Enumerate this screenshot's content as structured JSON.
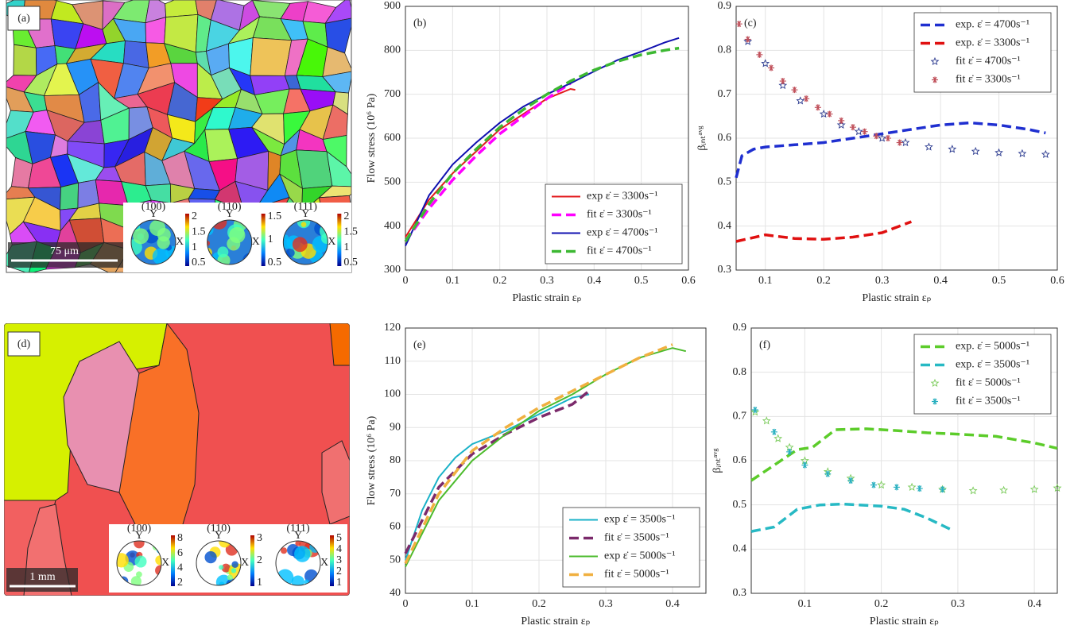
{
  "chart_data": [
    {
      "type": "line",
      "panel_label": "(b)",
      "xlabel": "Plastic strain εₚ",
      "ylabel": "Flow stress (10⁶ Pa)",
      "xlim": [
        0,
        0.6
      ],
      "xticks": [
        0,
        0.1,
        0.2,
        0.3,
        0.4,
        0.5,
        0.6
      ],
      "ylim": [
        300,
        900
      ],
      "yticks": [
        300,
        400,
        500,
        600,
        700,
        800,
        900
      ],
      "grid": true,
      "legend": "lower right",
      "series": [
        {
          "name": "exp ε̇ = 3300s⁻¹",
          "color": "#e31a1c",
          "style": "solid",
          "x": [
            0,
            0.05,
            0.1,
            0.15,
            0.2,
            0.25,
            0.3,
            0.35,
            0.36
          ],
          "values": [
            375,
            460,
            520,
            570,
            620,
            655,
            690,
            712,
            710
          ]
        },
        {
          "name": "fit ε̇ = 3300s⁻¹",
          "color": "#ff00ff",
          "style": "dashed",
          "x": [
            0,
            0.05,
            0.1,
            0.15,
            0.2,
            0.25,
            0.3,
            0.35
          ],
          "values": [
            365,
            440,
            505,
            560,
            610,
            650,
            690,
            725
          ]
        },
        {
          "name": "exp ε̇ = 4700s⁻¹",
          "color": "#1010b0",
          "style": "solid",
          "x": [
            0,
            0.05,
            0.1,
            0.15,
            0.2,
            0.25,
            0.3,
            0.35,
            0.4,
            0.45,
            0.5,
            0.55,
            0.58
          ],
          "values": [
            355,
            470,
            540,
            590,
            635,
            672,
            700,
            725,
            752,
            778,
            797,
            818,
            828
          ]
        },
        {
          "name": "fit ε̇ = 4700s⁻¹",
          "color": "#3cb832",
          "style": "dashed",
          "x": [
            0,
            0.05,
            0.1,
            0.15,
            0.2,
            0.25,
            0.3,
            0.35,
            0.4,
            0.45,
            0.5,
            0.55,
            0.58
          ],
          "values": [
            365,
            450,
            520,
            575,
            625,
            665,
            700,
            730,
            755,
            775,
            790,
            800,
            805
          ]
        }
      ]
    },
    {
      "type": "line",
      "panel_label": "(c)",
      "xlabel": "Plastic strain εₚ",
      "ylabel": "βᵢₙₜᵃᵛᵍ",
      "xlim": [
        0.05,
        0.6
      ],
      "xticks": [
        0.1,
        0.2,
        0.3,
        0.4,
        0.5,
        0.6
      ],
      "ylim": [
        0.3,
        0.9
      ],
      "yticks": [
        0.3,
        0.4,
        0.5,
        0.6,
        0.7,
        0.8,
        0.9
      ],
      "grid": true,
      "legend": "upper right",
      "series": [
        {
          "name": "exp. ε̇ = 4700s⁻¹",
          "color": "#1f2fd0",
          "style": "dashed",
          "x": [
            0.05,
            0.06,
            0.08,
            0.1,
            0.15,
            0.2,
            0.25,
            0.3,
            0.35,
            0.4,
            0.45,
            0.5,
            0.55,
            0.58
          ],
          "values": [
            0.51,
            0.56,
            0.575,
            0.58,
            0.585,
            0.59,
            0.6,
            0.61,
            0.62,
            0.63,
            0.635,
            0.63,
            0.62,
            0.612
          ]
        },
        {
          "name": "exp. ε̇ = 3300s⁻¹",
          "color": "#e01010",
          "style": "dashed",
          "x": [
            0.05,
            0.1,
            0.15,
            0.2,
            0.25,
            0.3,
            0.35
          ],
          "values": [
            0.365,
            0.38,
            0.372,
            0.37,
            0.375,
            0.385,
            0.41
          ]
        },
        {
          "name": "fit ε̇ = 4700s⁻¹",
          "color": "#2b3a8f",
          "style": "star",
          "x": [
            0.07,
            0.1,
            0.13,
            0.16,
            0.2,
            0.23,
            0.26,
            0.3,
            0.34,
            0.38,
            0.42,
            0.46,
            0.5,
            0.54,
            0.58
          ],
          "values": [
            0.82,
            0.77,
            0.72,
            0.685,
            0.655,
            0.63,
            0.615,
            0.6,
            0.59,
            0.58,
            0.575,
            0.57,
            0.567,
            0.565,
            0.563
          ]
        },
        {
          "name": "fit ε̇ = 3300s⁻¹",
          "color": "#c0505a",
          "style": "asterisk",
          "x": [
            0.055,
            0.07,
            0.09,
            0.11,
            0.13,
            0.15,
            0.17,
            0.19,
            0.21,
            0.23,
            0.25,
            0.27,
            0.29,
            0.31,
            0.33
          ],
          "values": [
            0.86,
            0.825,
            0.79,
            0.76,
            0.73,
            0.71,
            0.69,
            0.67,
            0.655,
            0.64,
            0.625,
            0.615,
            0.605,
            0.6,
            0.59
          ]
        }
      ]
    },
    {
      "type": "line",
      "panel_label": "(e)",
      "xlabel": "Plastic strain εₚ",
      "ylabel": "Flow stress (10⁶ Pa)",
      "xlim": [
        0,
        0.45
      ],
      "xticks": [
        0,
        0.1,
        0.2,
        0.3,
        0.4
      ],
      "ylim": [
        40,
        120
      ],
      "yticks": [
        40,
        50,
        60,
        70,
        80,
        90,
        100,
        110,
        120
      ],
      "grid": true,
      "legend": "lower right",
      "series": [
        {
          "name": "exp ε̇ = 3500s⁻¹",
          "color": "#1ab2c8",
          "style": "solid",
          "x": [
            0,
            0.025,
            0.05,
            0.075,
            0.1,
            0.15,
            0.2,
            0.25,
            0.275
          ],
          "values": [
            50,
            65,
            75,
            81,
            85,
            89,
            94,
            99,
            100
          ]
        },
        {
          "name": "fit ε̇ = 3500s⁻¹",
          "color": "#7b2a6b",
          "style": "dashed",
          "x": [
            0,
            0.05,
            0.1,
            0.15,
            0.2,
            0.25,
            0.275
          ],
          "values": [
            52,
            72,
            82,
            88,
            93,
            97,
            101
          ]
        },
        {
          "name": "exp ε̇ = 5000s⁻¹",
          "color": "#4cbb2c",
          "style": "solid",
          "x": [
            0,
            0.05,
            0.1,
            0.15,
            0.2,
            0.25,
            0.3,
            0.35,
            0.4,
            0.42
          ],
          "values": [
            48,
            68,
            80,
            88,
            95,
            100,
            106,
            111,
            114,
            113
          ]
        },
        {
          "name": "fit ε̇ = 5000s⁻¹",
          "color": "#f0b040",
          "style": "dashed",
          "x": [
            0,
            0.05,
            0.1,
            0.15,
            0.2,
            0.25,
            0.3,
            0.35,
            0.4
          ],
          "values": [
            49,
            70,
            83,
            90,
            96,
            101,
            106,
            111,
            115
          ]
        }
      ]
    },
    {
      "type": "line",
      "panel_label": "(f)",
      "xlabel": "Plastic strain εₚ",
      "ylabel": "βᵢₙₜᵃᵛᵍ",
      "xlim": [
        0.03,
        0.43
      ],
      "xticks": [
        0.1,
        0.2,
        0.3,
        0.4
      ],
      "ylim": [
        0.3,
        0.9
      ],
      "yticks": [
        0.3,
        0.4,
        0.5,
        0.6,
        0.7,
        0.8,
        0.9
      ],
      "grid": true,
      "legend": "upper right",
      "series": [
        {
          "name": "exp. ε̇ = 5000s⁻¹",
          "color": "#5ccc2a",
          "style": "dashed",
          "x": [
            0.03,
            0.06,
            0.09,
            0.11,
            0.14,
            0.18,
            0.22,
            0.26,
            0.3,
            0.35,
            0.4,
            0.43
          ],
          "values": [
            0.555,
            0.59,
            0.625,
            0.63,
            0.67,
            0.672,
            0.668,
            0.663,
            0.66,
            0.655,
            0.64,
            0.628
          ]
        },
        {
          "name": "exp. ε̇ = 3500s⁻¹",
          "color": "#27b9c4",
          "style": "dashed",
          "x": [
            0.03,
            0.06,
            0.09,
            0.12,
            0.15,
            0.2,
            0.23,
            0.26,
            0.29
          ],
          "values": [
            0.44,
            0.45,
            0.49,
            0.5,
            0.502,
            0.497,
            0.49,
            0.47,
            0.445
          ]
        },
        {
          "name": "fit ε̇ = 5000s⁻¹",
          "color": "#7acb5a",
          "style": "star",
          "x": [
            0.035,
            0.05,
            0.065,
            0.08,
            0.1,
            0.13,
            0.16,
            0.2,
            0.24,
            0.28,
            0.32,
            0.36,
            0.4,
            0.43
          ],
          "values": [
            0.71,
            0.69,
            0.65,
            0.63,
            0.6,
            0.575,
            0.56,
            0.545,
            0.54,
            0.535,
            0.532,
            0.533,
            0.535,
            0.538
          ]
        },
        {
          "name": "fit ε̇ = 3500s⁻¹",
          "color": "#2ab0c0",
          "style": "asterisk",
          "x": [
            0.035,
            0.06,
            0.08,
            0.1,
            0.13,
            0.16,
            0.19,
            0.22,
            0.25,
            0.28
          ],
          "values": [
            0.715,
            0.665,
            0.62,
            0.59,
            0.57,
            0.555,
            0.545,
            0.54,
            0.537,
            0.535
          ]
        }
      ]
    }
  ],
  "micrographs": [
    {
      "panel_label": "(a)",
      "scale_bar": "75 μm",
      "pole_figures": [
        {
          "title": "(100)",
          "axes": [
            "Y",
            "X"
          ],
          "colorbar_ticks": [
            2,
            1.5,
            1,
            0.5
          ]
        },
        {
          "title": "(110)",
          "axes": [
            "Y",
            "X"
          ],
          "colorbar_ticks": [
            1.5,
            1,
            0.5
          ]
        },
        {
          "title": "(111)",
          "axes": [
            "Y",
            "X"
          ],
          "colorbar_ticks": [
            2,
            1.5,
            1,
            0.5
          ]
        }
      ]
    },
    {
      "panel_label": "(d)",
      "scale_bar": "1 mm",
      "pole_figures": [
        {
          "title": "(100)",
          "axes": [
            "Y",
            "X"
          ],
          "colorbar_ticks": [
            8,
            6,
            4,
            2
          ]
        },
        {
          "title": "(110)",
          "axes": [
            "Y",
            "X"
          ],
          "colorbar_ticks": [
            3,
            2,
            1
          ]
        },
        {
          "title": "(111)",
          "axes": [
            "Y",
            "X"
          ],
          "colorbar_ticks": [
            5,
            4,
            3,
            2,
            1
          ]
        }
      ]
    }
  ]
}
